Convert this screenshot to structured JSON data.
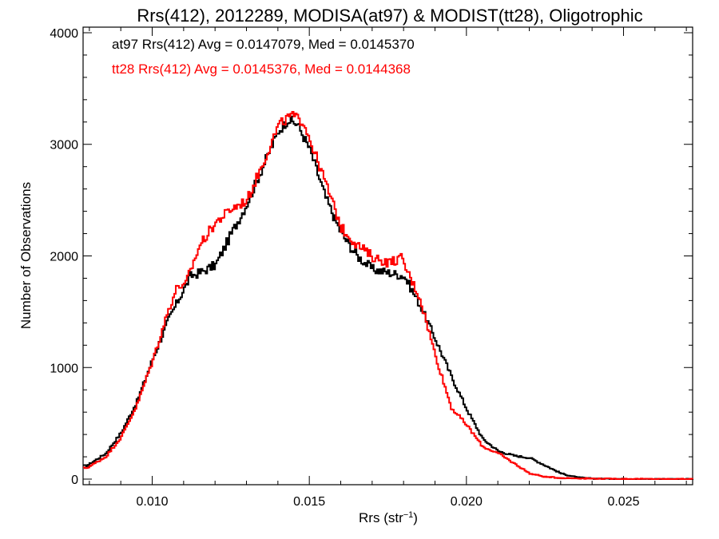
{
  "chart_data": {
    "type": "line",
    "title": "Rrs(412), 2012289, MODISA(at97) & MODIST(tt28), Oligotrophic",
    "xlabel_main": "Rrs (str",
    "xlabel_sup": "−1",
    "xlabel_close": ")",
    "ylabel": "Number of Observations",
    "xlim": [
      0.0078,
      0.0272
    ],
    "ylim": [
      -50,
      4050
    ],
    "xticks": [
      0.01,
      0.015,
      0.02,
      0.025
    ],
    "xtick_labels": [
      "0.010",
      "0.015",
      "0.020",
      "0.025"
    ],
    "yticks": [
      0,
      1000,
      2000,
      3000,
      4000
    ],
    "ytick_labels": [
      "0",
      "1000",
      "2000",
      "3000",
      "4000"
    ],
    "grid": false,
    "legend_position": "top-left",
    "series": [
      {
        "name": "at97",
        "color": "#000000",
        "annotation": "at97 Rrs(412) Avg = 0.0147079, Med = 0.0145370",
        "points": [
          [
            0.0079,
            120
          ],
          [
            0.0085,
            230
          ],
          [
            0.009,
            420
          ],
          [
            0.0095,
            700
          ],
          [
            0.01,
            1080
          ],
          [
            0.0105,
            1430
          ],
          [
            0.011,
            1710
          ],
          [
            0.0112,
            1820
          ],
          [
            0.0115,
            1850
          ],
          [
            0.012,
            1920
          ],
          [
            0.0125,
            2200
          ],
          [
            0.013,
            2470
          ],
          [
            0.0135,
            2800
          ],
          [
            0.014,
            3120
          ],
          [
            0.0143,
            3220
          ],
          [
            0.0146,
            3180
          ],
          [
            0.015,
            2950
          ],
          [
            0.0155,
            2520
          ],
          [
            0.016,
            2200
          ],
          [
            0.0165,
            2000
          ],
          [
            0.017,
            1880
          ],
          [
            0.0175,
            1850
          ],
          [
            0.018,
            1820
          ],
          [
            0.0185,
            1560
          ],
          [
            0.019,
            1250
          ],
          [
            0.0195,
            920
          ],
          [
            0.02,
            620
          ],
          [
            0.0205,
            360
          ],
          [
            0.021,
            250
          ],
          [
            0.0215,
            210
          ],
          [
            0.022,
            190
          ],
          [
            0.0225,
            120
          ],
          [
            0.023,
            50
          ],
          [
            0.0235,
            15
          ],
          [
            0.024,
            5
          ],
          [
            0.025,
            2
          ],
          [
            0.0272,
            0
          ]
        ]
      },
      {
        "name": "tt28",
        "color": "#ff0000",
        "annotation": "tt28 Rrs(412) Avg = 0.0145376, Med = 0.0144368",
        "points": [
          [
            0.0079,
            100
          ],
          [
            0.0085,
            200
          ],
          [
            0.009,
            380
          ],
          [
            0.0095,
            670
          ],
          [
            0.01,
            1070
          ],
          [
            0.0105,
            1520
          ],
          [
            0.0108,
            1740
          ],
          [
            0.011,
            1720
          ],
          [
            0.0115,
            2100
          ],
          [
            0.012,
            2300
          ],
          [
            0.0125,
            2420
          ],
          [
            0.013,
            2500
          ],
          [
            0.0135,
            2830
          ],
          [
            0.014,
            3170
          ],
          [
            0.0144,
            3260
          ],
          [
            0.0148,
            3200
          ],
          [
            0.015,
            3040
          ],
          [
            0.0155,
            2650
          ],
          [
            0.016,
            2250
          ],
          [
            0.0165,
            2100
          ],
          [
            0.017,
            1990
          ],
          [
            0.0175,
            1940
          ],
          [
            0.0179,
            1980
          ],
          [
            0.0185,
            1620
          ],
          [
            0.019,
            1100
          ],
          [
            0.0195,
            640
          ],
          [
            0.02,
            480
          ],
          [
            0.0205,
            290
          ],
          [
            0.021,
            230
          ],
          [
            0.0215,
            140
          ],
          [
            0.022,
            50
          ],
          [
            0.0225,
            20
          ],
          [
            0.023,
            10
          ],
          [
            0.024,
            5
          ],
          [
            0.025,
            2
          ],
          [
            0.0272,
            0
          ]
        ]
      }
    ]
  }
}
